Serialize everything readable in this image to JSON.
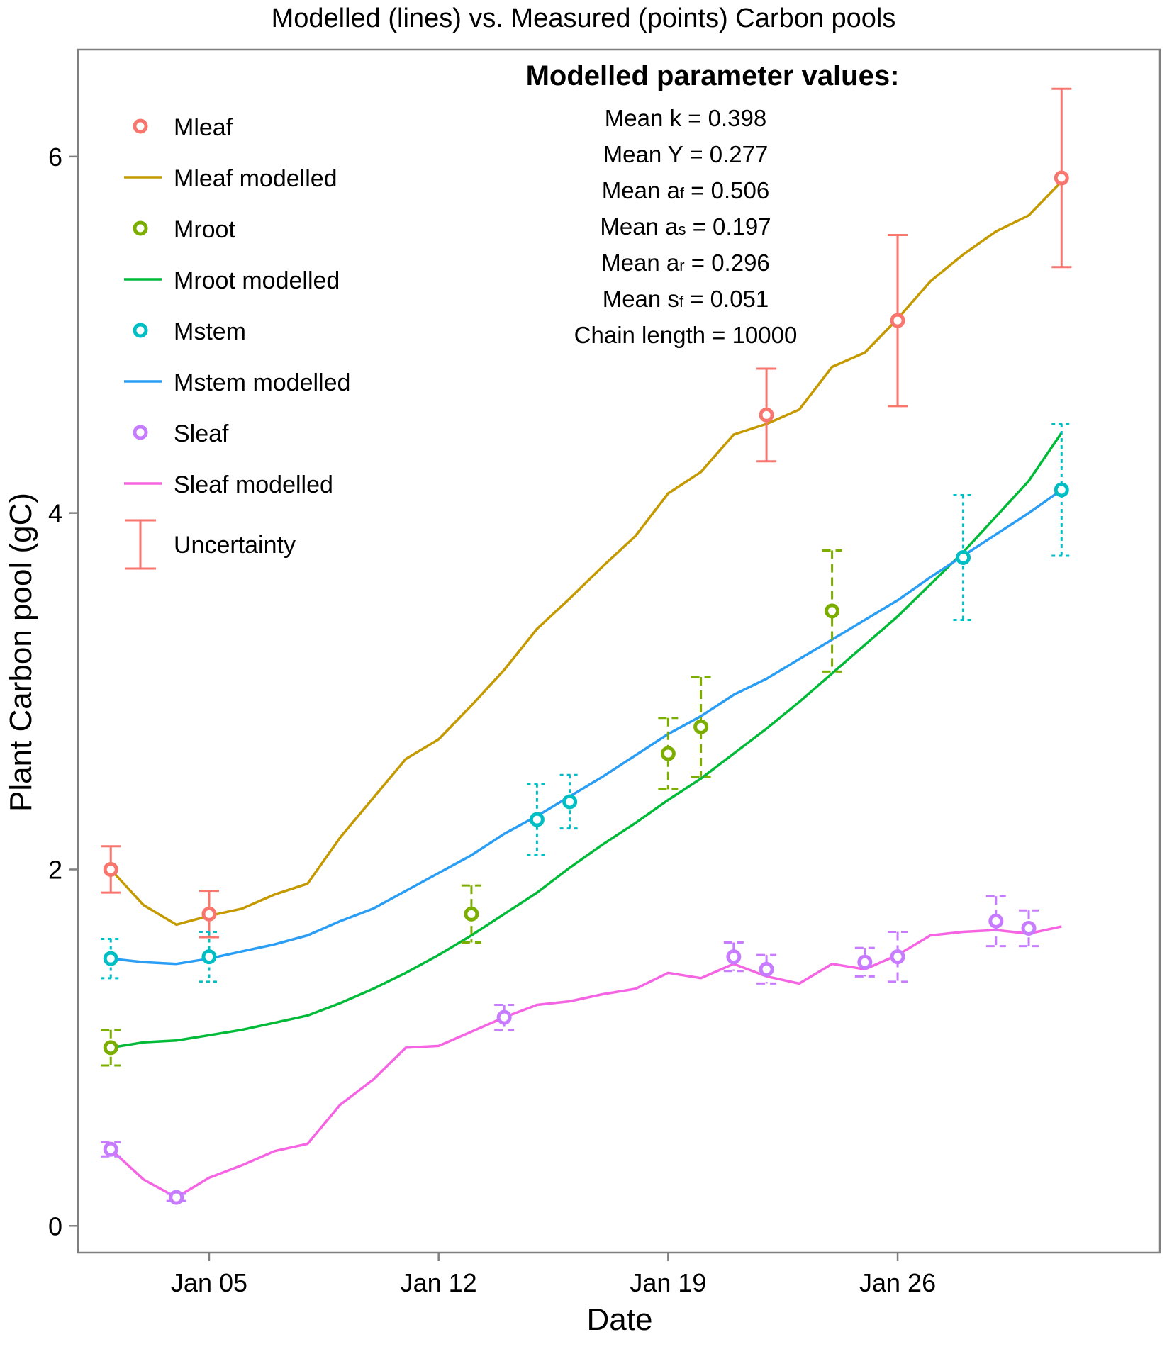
{
  "chart_data": {
    "type": "line",
    "title": "Modelled (lines) vs. Measured (points) Carbon pools",
    "xlabel": "Date",
    "ylabel": "Plant Carbon pool (gC)",
    "x_axis": {
      "type": "date",
      "range": [
        "Jan 01",
        "Feb 03"
      ],
      "ticks": [
        "Jan 05",
        "Jan 12",
        "Jan 19",
        "Jan 26"
      ]
    },
    "y_axis": {
      "range": [
        -0.15,
        6.6
      ],
      "ticks": [
        0,
        2,
        4,
        6
      ]
    },
    "grid": false,
    "legend": {
      "position": "top-left",
      "items": [
        {
          "label": "Mleaf",
          "kind": "point",
          "color": "#F8766D"
        },
        {
          "label": "Mleaf modelled",
          "kind": "line",
          "color": "#C49A00"
        },
        {
          "label": "Mroot",
          "kind": "point",
          "color": "#7CAE00"
        },
        {
          "label": "Mroot modelled",
          "kind": "line",
          "color": "#00BA38"
        },
        {
          "label": "Mstem",
          "kind": "point",
          "color": "#00BFC4"
        },
        {
          "label": "Mstem modelled",
          "kind": "line",
          "color": "#2A9DF4"
        },
        {
          "label": "Sleaf",
          "kind": "point",
          "color": "#C77CFF"
        },
        {
          "label": "Sleaf modelled",
          "kind": "line",
          "color": "#F564E3"
        },
        {
          "label": "Uncertainty",
          "kind": "errorbar",
          "color": "#F8766D"
        }
      ]
    },
    "annotation": {
      "heading": "Modelled parameter values:",
      "lines": [
        {
          "label": "Mean k = ",
          "sub": "",
          "tail": "",
          "value": "0.398"
        },
        {
          "label": "Mean Y = ",
          "sub": "",
          "tail": "",
          "value": "0.277"
        },
        {
          "label": "Mean a",
          "sub": "f",
          "tail": " = ",
          "value": "0.506"
        },
        {
          "label": "Mean a",
          "sub": "s",
          "tail": " = ",
          "value": "0.197"
        },
        {
          "label": "Mean a",
          "sub": "r",
          "tail": " = ",
          "value": "0.296"
        },
        {
          "label": "Mean s",
          "sub": "f",
          "tail": " = ",
          "value": "0.051"
        },
        {
          "label": "Chain length = ",
          "sub": "",
          "tail": "",
          "value": "10000"
        }
      ]
    },
    "lines": [
      {
        "name": "Mleaf modelled",
        "color": "#C49A00",
        "x": [
          "2025-01-02",
          "2025-01-03",
          "2025-01-04",
          "2025-01-05",
          "2025-01-06",
          "2025-01-07",
          "2025-01-08",
          "2025-01-09",
          "2025-01-10",
          "2025-01-11",
          "2025-01-12",
          "2025-01-13",
          "2025-01-14",
          "2025-01-15",
          "2025-01-16",
          "2025-01-17",
          "2025-01-18",
          "2025-01-19",
          "2025-01-20",
          "2025-01-21",
          "2025-01-22",
          "2025-01-23",
          "2025-01-24",
          "2025-01-25",
          "2025-01-26",
          "2025-01-27",
          "2025-01-28",
          "2025-01-29",
          "2025-01-30",
          "2025-01-31"
        ],
        "y": [
          2.0,
          1.8,
          1.69,
          1.74,
          1.78,
          1.86,
          1.92,
          2.18,
          2.4,
          2.62,
          2.73,
          2.92,
          3.12,
          3.35,
          3.52,
          3.7,
          3.87,
          4.11,
          4.23,
          4.44,
          4.5,
          4.58,
          4.82,
          4.9,
          5.09,
          5.3,
          5.45,
          5.58,
          5.67,
          5.86
        ]
      },
      {
        "name": "Mroot modelled",
        "color": "#00BA38",
        "x": [
          "2025-01-02",
          "2025-01-03",
          "2025-01-04",
          "2025-01-05",
          "2025-01-06",
          "2025-01-07",
          "2025-01-08",
          "2025-01-09",
          "2025-01-10",
          "2025-01-11",
          "2025-01-12",
          "2025-01-13",
          "2025-01-14",
          "2025-01-15",
          "2025-01-16",
          "2025-01-17",
          "2025-01-18",
          "2025-01-19",
          "2025-01-20",
          "2025-01-21",
          "2025-01-22",
          "2025-01-23",
          "2025-01-24",
          "2025-01-25",
          "2025-01-26",
          "2025-01-27",
          "2025-01-28",
          "2025-01-29",
          "2025-01-30",
          "2025-01-31"
        ],
        "y": [
          1.0,
          1.03,
          1.04,
          1.07,
          1.1,
          1.14,
          1.18,
          1.25,
          1.33,
          1.42,
          1.52,
          1.63,
          1.75,
          1.87,
          2.01,
          2.14,
          2.26,
          2.39,
          2.51,
          2.65,
          2.79,
          2.94,
          3.1,
          3.26,
          3.42,
          3.6,
          3.78,
          3.98,
          4.18,
          4.45
        ]
      },
      {
        "name": "Mstem modelled",
        "color": "#2A9DF4",
        "x": [
          "2025-01-02",
          "2025-01-03",
          "2025-01-04",
          "2025-01-05",
          "2025-01-06",
          "2025-01-07",
          "2025-01-08",
          "2025-01-09",
          "2025-01-10",
          "2025-01-11",
          "2025-01-12",
          "2025-01-13",
          "2025-01-14",
          "2025-01-15",
          "2025-01-16",
          "2025-01-17",
          "2025-01-18",
          "2025-01-19",
          "2025-01-20",
          "2025-01-21",
          "2025-01-22",
          "2025-01-23",
          "2025-01-24",
          "2025-01-25",
          "2025-01-26",
          "2025-01-27",
          "2025-01-28",
          "2025-01-29",
          "2025-01-30",
          "2025-01-31"
        ],
        "y": [
          1.5,
          1.48,
          1.47,
          1.5,
          1.54,
          1.58,
          1.63,
          1.71,
          1.78,
          1.88,
          1.98,
          2.08,
          2.2,
          2.3,
          2.41,
          2.52,
          2.64,
          2.76,
          2.86,
          2.98,
          3.07,
          3.18,
          3.29,
          3.4,
          3.51,
          3.64,
          3.76,
          3.88,
          4.0,
          4.13
        ]
      },
      {
        "name": "Sleaf modelled",
        "color": "#F564E3",
        "x": [
          "2025-01-02",
          "2025-01-03",
          "2025-01-04",
          "2025-01-05",
          "2025-01-06",
          "2025-01-07",
          "2025-01-08",
          "2025-01-09",
          "2025-01-10",
          "2025-01-11",
          "2025-01-12",
          "2025-01-13",
          "2025-01-14",
          "2025-01-15",
          "2025-01-16",
          "2025-01-17",
          "2025-01-18",
          "2025-01-19",
          "2025-01-20",
          "2025-01-21",
          "2025-01-22",
          "2025-01-23",
          "2025-01-24",
          "2025-01-25",
          "2025-01-26",
          "2025-01-27",
          "2025-01-28",
          "2025-01-29",
          "2025-01-30",
          "2025-01-31"
        ],
        "y": [
          0.43,
          0.26,
          0.16,
          0.27,
          0.34,
          0.42,
          0.46,
          0.68,
          0.82,
          1.0,
          1.01,
          1.09,
          1.17,
          1.24,
          1.26,
          1.3,
          1.33,
          1.42,
          1.39,
          1.47,
          1.4,
          1.36,
          1.47,
          1.44,
          1.52,
          1.63,
          1.65,
          1.66,
          1.64,
          1.68
        ]
      }
    ],
    "points": [
      {
        "name": "Mleaf",
        "color": "#F8766D",
        "dash": "none",
        "x": [
          "2025-01-02",
          "2025-01-05",
          "2025-01-22",
          "2025-01-26",
          "2025-01-31"
        ],
        "y": [
          2.0,
          1.75,
          4.55,
          5.08,
          5.88
        ],
        "err": [
          0.13,
          0.13,
          0.26,
          0.48,
          0.5
        ]
      },
      {
        "name": "Mroot",
        "color": "#7CAE00",
        "dash": "12,7",
        "x": [
          "2025-01-02",
          "2025-01-13",
          "2025-01-19",
          "2025-01-20",
          "2025-01-24"
        ],
        "y": [
          1.0,
          1.75,
          2.65,
          2.8,
          3.45
        ],
        "err": [
          0.1,
          0.16,
          0.2,
          0.28,
          0.34
        ]
      },
      {
        "name": "Mstem",
        "color": "#00BFC4",
        "dash": "5,5",
        "x": [
          "2025-01-02",
          "2025-01-05",
          "2025-01-15",
          "2025-01-16",
          "2025-01-28",
          "2025-01-31"
        ],
        "y": [
          1.5,
          1.51,
          2.28,
          2.38,
          3.75,
          4.13
        ],
        "err": [
          0.11,
          0.14,
          0.2,
          0.15,
          0.35,
          0.37
        ]
      },
      {
        "name": "Sleaf",
        "color": "#C77CFF",
        "dash": "12,7",
        "x": [
          "2025-01-02",
          "2025-01-04",
          "2025-01-14",
          "2025-01-21",
          "2025-01-22",
          "2025-01-25",
          "2025-01-26",
          "2025-01-29",
          "2025-01-30"
        ],
        "y": [
          0.43,
          0.16,
          1.17,
          1.51,
          1.44,
          1.48,
          1.51,
          1.71,
          1.67
        ],
        "err": [
          0.04,
          0.02,
          0.07,
          0.08,
          0.08,
          0.08,
          0.14,
          0.14,
          0.1
        ]
      }
    ]
  }
}
